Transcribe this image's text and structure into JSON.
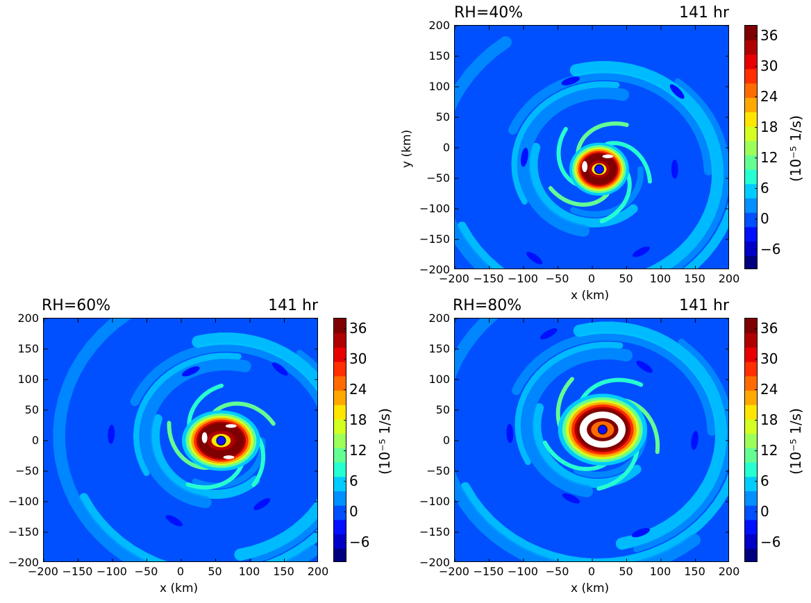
{
  "figure": {
    "colormap": [
      "#00007f",
      "#0000c8",
      "#0010ff",
      "#0050ff",
      "#0090ff",
      "#00ccff",
      "#26ffd1",
      "#63ff93",
      "#9cff5a",
      "#d4ff23",
      "#ffe500",
      "#ffa800",
      "#ff6b00",
      "#ff2f00",
      "#e80000",
      "#b00000",
      "#7f0000"
    ],
    "vortex_center_color": "#1010ff",
    "white_patch_color": "#ffffff"
  },
  "chart_data": [
    {
      "type": "heatmap",
      "panel": "RH=40%",
      "title_left": "RH=40%",
      "title_right": "141 hr",
      "xlabel": "x (km)",
      "ylabel": "y (km)",
      "xlim": [
        -200,
        200
      ],
      "ylim": [
        -200,
        200
      ],
      "xticks": [
        "−200",
        "−150",
        "−100",
        "−50",
        "0",
        "50",
        "100",
        "150",
        "200"
      ],
      "yticks": [
        "200",
        "150",
        "100",
        "50",
        "0",
        "−50",
        "−100",
        "−150",
        "−200"
      ],
      "colorbar": {
        "label": "(10⁻⁵  1/s)",
        "ticks": [
          "36",
          "30",
          "24",
          "18",
          "12",
          "6",
          "0",
          "−6"
        ],
        "range": [
          -10,
          38
        ]
      },
      "vortex_center": [
        10,
        -35
      ],
      "eyewall_radius_km": 28,
      "eyewall_aspect": 1.0
    },
    {
      "type": "heatmap",
      "panel": "RH=60%",
      "title_left": "RH=60%",
      "title_right": "141 hr",
      "xlabel": "x (km)",
      "ylabel": "",
      "xlim": [
        -200,
        200
      ],
      "ylim": [
        -200,
        200
      ],
      "xticks": [
        "−200",
        "−150",
        "−100",
        "−50",
        "0",
        "50",
        "100",
        "150",
        "200"
      ],
      "yticks": [
        "200",
        "150",
        "100",
        "50",
        "0",
        "−50",
        "−100",
        "−150",
        "−200"
      ],
      "colorbar": {
        "label": "(10⁻⁵  1/s)",
        "ticks": [
          "36",
          "30",
          "24",
          "18",
          "12",
          "6",
          "0",
          "−6"
        ],
        "range": [
          -10,
          38
        ]
      },
      "vortex_center": [
        58,
        0
      ],
      "eyewall_radius_km": 32,
      "eyewall_aspect": 1.15
    },
    {
      "type": "heatmap",
      "panel": "RH=80%",
      "title_left": "RH=80%",
      "title_right": "141 hr",
      "xlabel": "x (km)",
      "ylabel": "",
      "xlim": [
        -200,
        200
      ],
      "ylim": [
        -200,
        200
      ],
      "xticks": [
        "−200",
        "−150",
        "−100",
        "−50",
        "0",
        "50",
        "100",
        "150",
        "200"
      ],
      "yticks": [
        "200",
        "150",
        "100",
        "50",
        "0",
        "−50",
        "−100",
        "−150",
        "−200"
      ],
      "colorbar": {
        "label": "(10⁻⁵  1/s)",
        "ticks": [
          "36",
          "30",
          "24",
          "18",
          "12",
          "6",
          "0",
          "−6"
        ],
        "range": [
          -10,
          38
        ]
      },
      "vortex_center": [
        15,
        18
      ],
      "eyewall_radius_km": 38,
      "eyewall_aspect": 1.1
    }
  ]
}
